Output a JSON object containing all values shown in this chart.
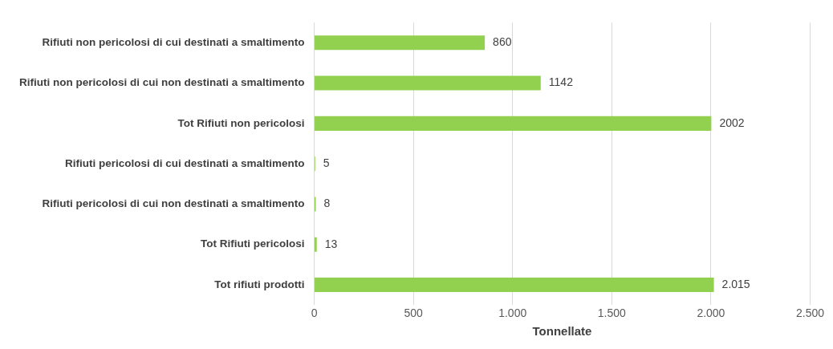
{
  "chart_data": {
    "type": "bar",
    "orientation": "horizontal",
    "xlabel": "Tonnellate",
    "categories": [
      "Rifiuti non pericolosi di cui destinati a smaltimento",
      "Rifiuti non pericolosi di cui non destinati a smaltimento",
      "Tot Rifiuti non pericolosi",
      "Rifiuti pericolosi di cui destinati a smaltimento",
      "Rifiuti pericolosi di cui non destinati a smaltimento",
      "Tot Rifiuti pericolosi",
      "Tot rifiuti prodotti"
    ],
    "values": [
      860,
      1142,
      2002,
      5,
      8,
      13,
      2015
    ],
    "value_labels": [
      "860",
      "1142",
      "2002",
      "5",
      "8",
      "13",
      "2.015"
    ],
    "color": "#92d050",
    "xlim": [
      0,
      2500
    ],
    "xticks": [
      0,
      500,
      {
        "value": 1000,
        "label": "1.000"
      },
      {
        "value": 1500,
        "label": "1.500"
      },
      {
        "value": 2000,
        "label": "2.000"
      },
      {
        "value": 2500,
        "label": "2.500"
      }
    ],
    "grid": "x",
    "legend": false
  }
}
